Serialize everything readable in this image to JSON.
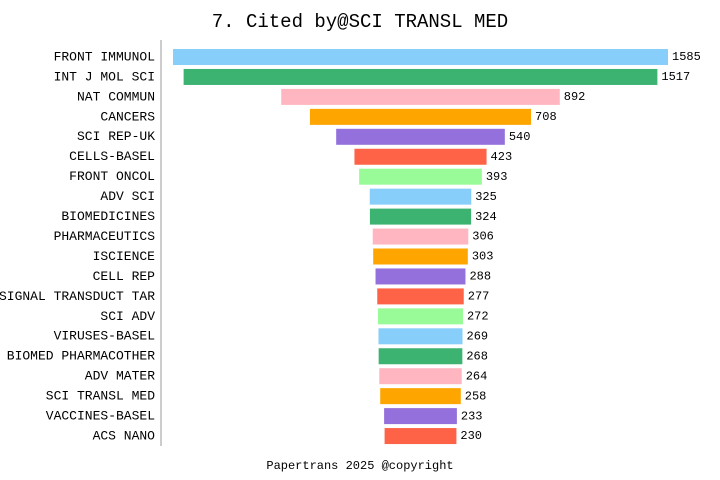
{
  "chart_data": {
    "type": "bar",
    "orientation": "horizontal-centered",
    "title": "7. Cited by@SCI TRANSL MED",
    "footer": "Papertrans 2025 @copyright",
    "categories": [
      "FRONT IMMUNOL",
      "INT J MOL SCI",
      "NAT COMMUN",
      "CANCERS",
      "SCI REP-UK",
      "CELLS-BASEL",
      "FRONT ONCOL",
      "ADV SCI",
      "BIOMEDICINES",
      "PHARMACEUTICS",
      "ISCIENCE",
      "CELL REP",
      "SIGNAL TRANSDUCT TAR",
      "SCI ADV",
      "VIRUSES-BASEL",
      "BIOMED PHARMACOTHER",
      "ADV MATER",
      "SCI TRANSL MED",
      "VACCINES-BASEL",
      "ACS NANO"
    ],
    "values": [
      1585,
      1517,
      892,
      708,
      540,
      423,
      393,
      325,
      324,
      306,
      303,
      288,
      277,
      272,
      269,
      268,
      264,
      258,
      233,
      230
    ],
    "colors": [
      "#87cefa",
      "#3cb371",
      "#ffb6c1",
      "#ffa500",
      "#9370db",
      "#ff6347",
      "#98fb98",
      "#87cefa",
      "#3cb371",
      "#ffb6c1",
      "#ffa500",
      "#9370db",
      "#ff6347",
      "#98fb98",
      "#87cefa",
      "#3cb371",
      "#ffb6c1",
      "#ffa500",
      "#9370db",
      "#ff6347"
    ]
  }
}
